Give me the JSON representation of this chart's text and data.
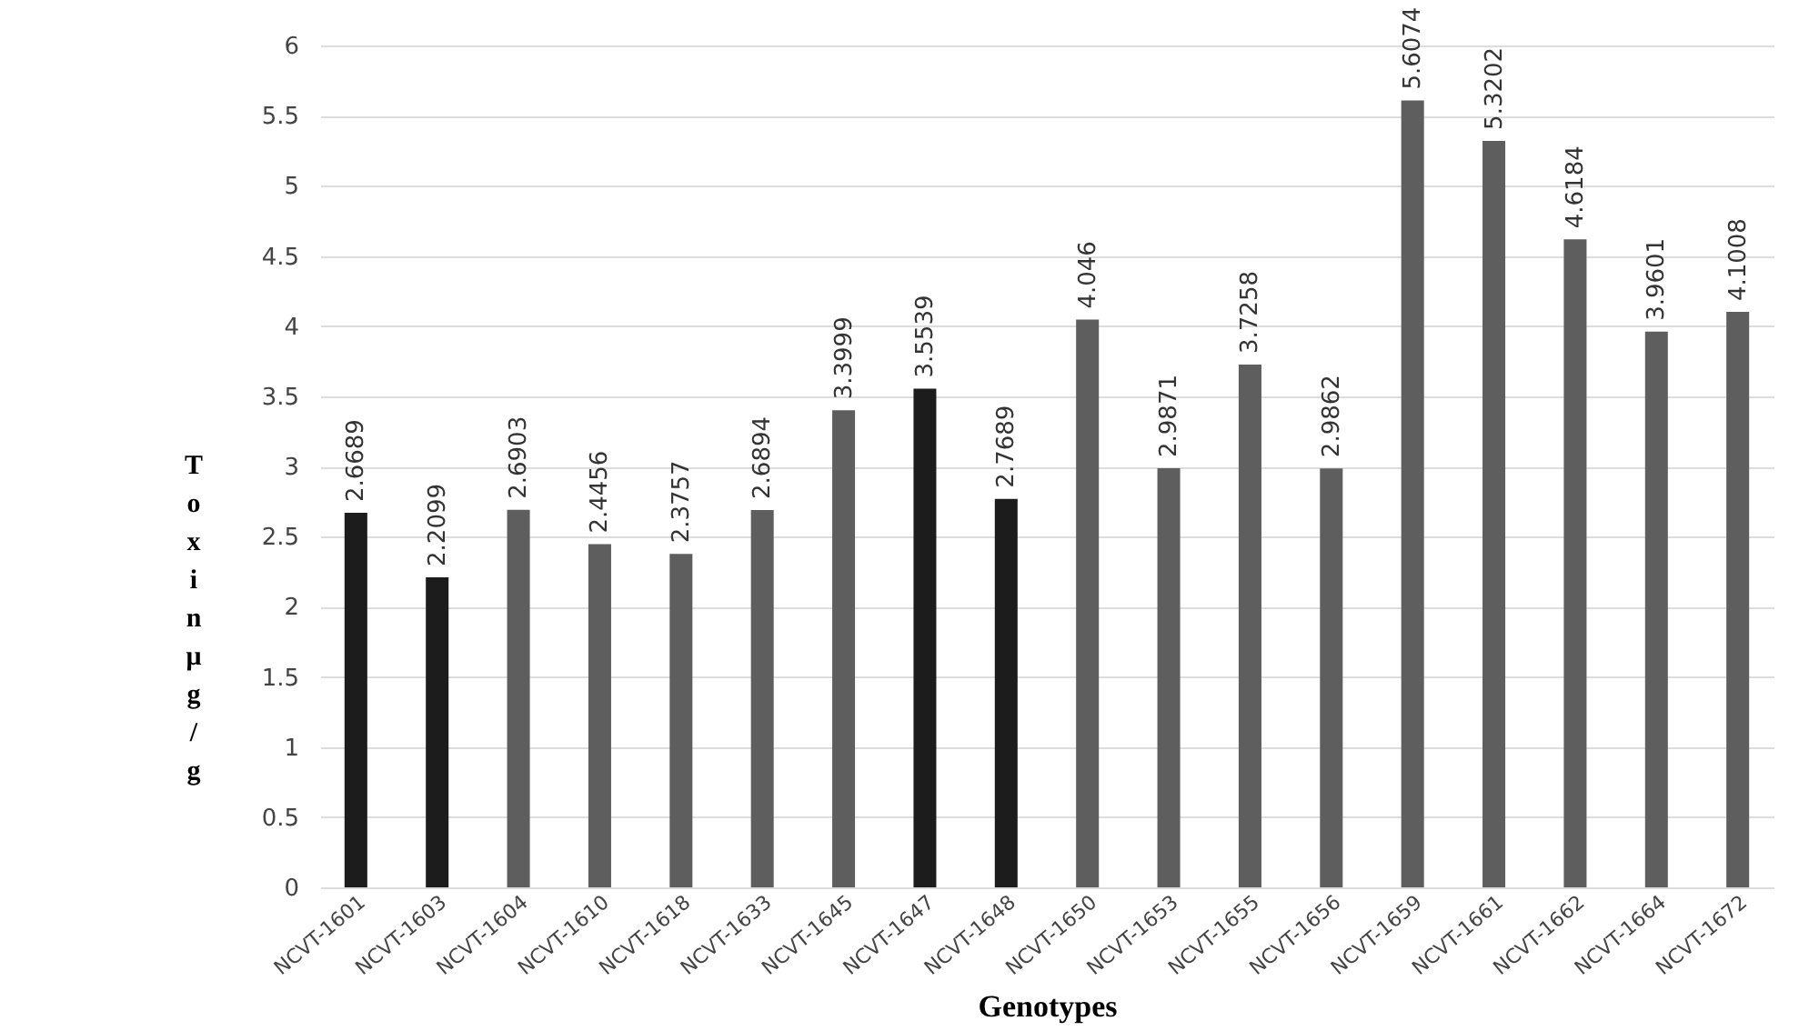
{
  "chart_data": {
    "type": "bar",
    "xlabel": "Genotypes",
    "ylabel": "Toxin μg/g",
    "categories": [
      "NCVT-1601",
      "NCVT-1603",
      "NCVT-1604",
      "NCVT-1610",
      "NCVT-1618",
      "NCVT-1633",
      "NCVT-1645",
      "NCVT-1647",
      "NCVT-1648",
      "NCVT-1650",
      "NCVT-1653",
      "NCVT-1655",
      "NCVT-1656",
      "NCVT-1659",
      "NCVT-1661",
      "NCVT-1662",
      "NCVT-1664",
      "NCVT-1672"
    ],
    "values": [
      2.6689,
      2.2099,
      2.6903,
      2.4456,
      2.3757,
      2.6894,
      3.3999,
      3.5539,
      2.7689,
      4.046,
      2.9871,
      3.7258,
      2.9862,
      5.6074,
      5.3202,
      4.6184,
      3.9601,
      4.1008
    ],
    "colors": [
      "#1c1c1c",
      "#1c1c1c",
      "#5e5e5e",
      "#5e5e5e",
      "#5e5e5e",
      "#5e5e5e",
      "#5e5e5e",
      "#1c1c1c",
      "#1c1c1c",
      "#5e5e5e",
      "#5e5e5e",
      "#5e5e5e",
      "#5e5e5e",
      "#5e5e5e",
      "#5e5e5e",
      "#5e5e5e",
      "#5e5e5e",
      "#5e5e5e"
    ],
    "ylim": [
      0,
      6
    ],
    "yticks": [
      0,
      0.5,
      1,
      1.5,
      2,
      2.5,
      3,
      3.5,
      4,
      4.5,
      5,
      5.5,
      6
    ],
    "grid": "y",
    "data_labels": true
  }
}
